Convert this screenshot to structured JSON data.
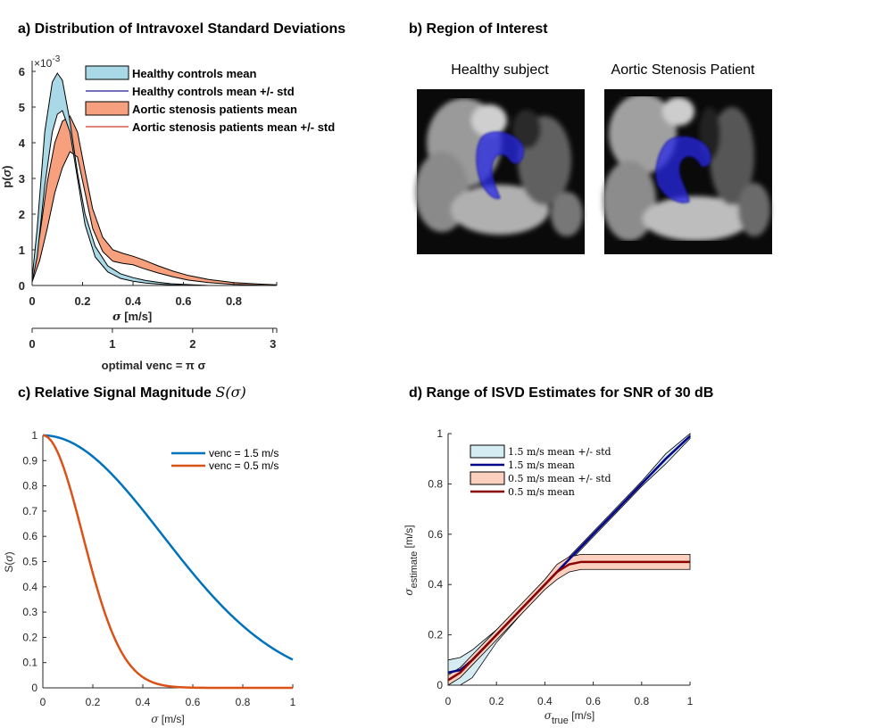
{
  "colors": {
    "healthy_fill": "#a9d9e6",
    "healthy_line": "#1f1f8f",
    "stenosis_fill": "#f6a07e",
    "stenosis_line": "#d23a2a",
    "blue_curve": "#0072bd",
    "orange_curve": "#d95319",
    "ci_blue_fill": "#d6ecf3",
    "ci_blue_line": "#00008b",
    "ci_red_fill": "#fbd0bf",
    "ci_red_line": "#8b0000",
    "roi_overlay": "#2a2ae6"
  },
  "panel_a": {
    "title": "a) Distribution of Intravoxel  Standard Deviations",
    "exponent": "×10",
    "exponent_power": "-3"
  },
  "panel_b": {
    "title": "b) Region  of Interest",
    "label_healthy": "Healthy  subject",
    "label_patient": "Aortic Stenosis  Patient"
  },
  "panel_c": {
    "title": "c) Relative  Signal Magnitude ",
    "title_math": "S(σ)"
  },
  "panel_d": {
    "title": "d) Range  of ISVD Estimates  for SNR of 30 dB"
  },
  "chart_data": [
    {
      "type": "area",
      "id": "a",
      "title": "a) Distribution of Intravoxel  Standard Deviations",
      "xlabel": "σ  [m/s]",
      "ylabel": "p(σ)",
      "y_scale_note": "×10^-3",
      "xlim": [
        0,
        0.97
      ],
      "ylim": [
        0,
        6.3
      ],
      "xticks": [
        "0",
        "0.2",
        "0.4",
        "0.6",
        "0.8"
      ],
      "yticks": [
        "0",
        "1",
        "2",
        "3",
        "4",
        "5",
        "6"
      ],
      "secondary_x_axis": {
        "label": "optimal venc = π σ",
        "ticks": [
          "0",
          "1",
          "2",
          "3"
        ]
      },
      "legend": [
        "Healthy controls mean",
        "Healthy controls mean +/- std",
        "Aortic stenosis patients mean",
        "Aortic stenosis patients mean +/- std"
      ],
      "series": [
        {
          "name": "Healthy controls mean +/- std",
          "x": [
            0,
            0.02,
            0.05,
            0.08,
            0.1,
            0.12,
            0.15,
            0.18,
            0.21,
            0.25,
            0.3,
            0.35,
            0.4,
            0.45,
            0.5,
            0.55,
            0.6,
            0.7
          ],
          "upper": [
            0.2,
            1.6,
            4.3,
            5.7,
            5.95,
            5.75,
            4.6,
            3.15,
            2.0,
            1.1,
            0.55,
            0.33,
            0.22,
            0.14,
            0.09,
            0.05,
            0.03,
            0
          ],
          "lower": [
            0.1,
            0.8,
            2.8,
            4.3,
            4.8,
            4.9,
            4.3,
            3.0,
            1.7,
            0.8,
            0.38,
            0.2,
            0.12,
            0.07,
            0.04,
            0.02,
            0.01,
            0
          ]
        },
        {
          "name": "Aortic stenosis patients mean +/- std",
          "x": [
            0,
            0.03,
            0.06,
            0.09,
            0.12,
            0.15,
            0.18,
            0.21,
            0.24,
            0.28,
            0.32,
            0.36,
            0.4,
            0.44,
            0.5,
            0.56,
            0.62,
            0.7,
            0.8,
            0.9,
            0.97
          ],
          "upper": [
            0.3,
            1.4,
            2.9,
            4.0,
            4.6,
            4.75,
            4.3,
            3.2,
            2.15,
            1.35,
            1.0,
            0.9,
            0.82,
            0.72,
            0.55,
            0.4,
            0.28,
            0.17,
            0.08,
            0.04,
            0.02
          ],
          "lower": [
            0.1,
            0.7,
            1.6,
            2.6,
            3.3,
            3.75,
            3.6,
            2.6,
            1.6,
            0.95,
            0.68,
            0.62,
            0.58,
            0.48,
            0.35,
            0.24,
            0.15,
            0.08,
            0.03,
            0.01,
            0
          ]
        }
      ]
    },
    {
      "type": "line",
      "id": "c",
      "title": "c) Relative  Signal Magnitude S(σ)",
      "xlabel": "σ  [m/s]",
      "ylabel": "S(σ)",
      "xlim": [
        0,
        1
      ],
      "ylim": [
        0,
        1
      ],
      "xticks": [
        "0",
        "0.2",
        "0.4",
        "0.6",
        "0.8",
        "1"
      ],
      "yticks": [
        "0",
        "0.1",
        "0.2",
        "0.3",
        "0.4",
        "0.5",
        "0.6",
        "0.7",
        "0.8",
        "0.9",
        "1"
      ],
      "series": [
        {
          "name": "venc = 1.5 m/s",
          "venc": 1.5
        },
        {
          "name": "venc = 0.5 m/s",
          "venc": 0.5
        }
      ]
    },
    {
      "type": "line",
      "id": "d",
      "title": "d) Range  of ISVD Estimates  for SNR of 30 dB",
      "xlabel": "σ_true  [m/s]",
      "ylabel": "σ_estimate  [m/s]",
      "xlim": [
        0,
        1
      ],
      "ylim": [
        0,
        1
      ],
      "xticks": [
        "0",
        "0.2",
        "0.4",
        "0.6",
        "0.8",
        "1"
      ],
      "yticks": [
        "0",
        "0.2",
        "0.4",
        "0.6",
        "0.8",
        "1"
      ],
      "legend": [
        "1.5 m/s mean +/- std",
        "1.5 m/s mean",
        "0.5 m/s mean +/- std",
        "0.5 m/s mean"
      ],
      "series": [
        {
          "name": "1.5 m/s",
          "x": [
            0,
            0.05,
            0.1,
            0.15,
            0.2,
            0.3,
            0.4,
            0.5,
            0.6,
            0.7,
            0.8,
            0.9,
            1.0
          ],
          "mean": [
            0.05,
            0.06,
            0.1,
            0.15,
            0.2,
            0.3,
            0.4,
            0.5,
            0.6,
            0.7,
            0.8,
            0.9,
            0.99
          ],
          "upper": [
            0.1,
            0.11,
            0.14,
            0.18,
            0.22,
            0.31,
            0.41,
            0.51,
            0.61,
            0.71,
            0.81,
            0.92,
            1.0
          ],
          "lower": [
            0.0,
            0.0,
            0.03,
            0.1,
            0.17,
            0.28,
            0.39,
            0.49,
            0.59,
            0.69,
            0.79,
            0.88,
            0.98
          ]
        },
        {
          "name": "0.5 m/s",
          "x": [
            0,
            0.05,
            0.1,
            0.15,
            0.2,
            0.3,
            0.4,
            0.45,
            0.5,
            0.55,
            0.6,
            0.7,
            0.8,
            0.9,
            1.0
          ],
          "mean": [
            0.02,
            0.05,
            0.1,
            0.15,
            0.2,
            0.3,
            0.4,
            0.45,
            0.48,
            0.49,
            0.49,
            0.49,
            0.49,
            0.49,
            0.49
          ],
          "upper": [
            0.04,
            0.07,
            0.12,
            0.17,
            0.22,
            0.32,
            0.42,
            0.48,
            0.51,
            0.52,
            0.52,
            0.52,
            0.52,
            0.52,
            0.52
          ],
          "lower": [
            0.0,
            0.03,
            0.08,
            0.13,
            0.18,
            0.28,
            0.38,
            0.42,
            0.45,
            0.46,
            0.46,
            0.46,
            0.46,
            0.46,
            0.46
          ]
        }
      ]
    }
  ]
}
